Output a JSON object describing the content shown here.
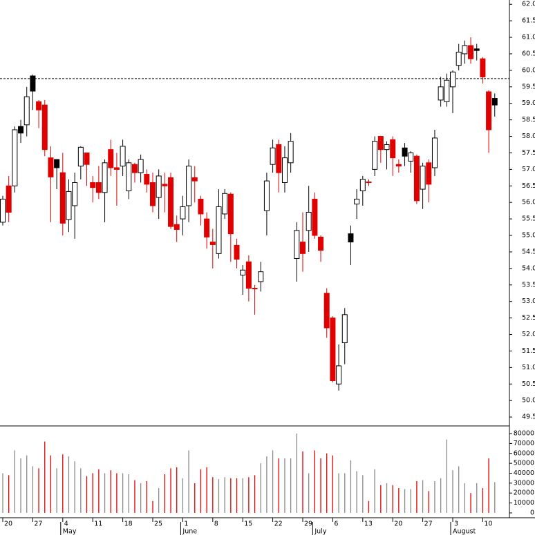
{
  "chart_data": [
    {
      "type": "candlestick",
      "open": [
        55.4,
        56.5,
        56.5,
        58.3,
        58.35,
        59.83,
        59.05,
        58.95,
        57.35,
        57.3,
        56.9,
        55.48,
        55.9,
        57.1,
        57.5,
        56.6,
        56.6,
        56.3,
        57.6,
        57.05,
        57.1,
        56.35,
        57.15,
        56.9,
        56.85,
        56.6,
        56.15,
        56.55,
        56.75,
        55.33,
        55.5,
        55.9,
        56.75,
        56.1,
        55.5,
        54.8,
        54.45,
        55.65,
        56.25,
        54.7,
        53.8,
        54.2,
        53.4,
        53.6,
        55.75,
        57.15,
        57.75,
        56.6,
        57.2,
        54.3,
        54.8,
        55.15,
        56.1,
        54.95,
        53.25,
        52.5,
        50.5,
        51.75,
        55.05,
        55.95,
        56.35,
        56.62,
        57.0,
        58.0,
        57.6,
        57.9,
        57.15,
        57.65,
        57.25,
        57.4,
        56.4,
        57.2,
        57.05,
        59.1,
        59.05,
        59.5,
        60.15,
        60.5,
        60.75,
        60.65,
        60.35,
        59.35,
        59.15
      ],
      "high": [
        56.2,
        56.8,
        58.3,
        58.5,
        59.5,
        59.87,
        59.1,
        59.1,
        57.7,
        57.3,
        57.5,
        56.7,
        56.9,
        57.7,
        57.5,
        56.8,
        57.1,
        57.3,
        57.9,
        57.5,
        57.9,
        57.3,
        57.2,
        57.45,
        57.0,
        56.9,
        57.0,
        56.9,
        56.9,
        55.6,
        56.2,
        57.3,
        57.1,
        56.2,
        55.7,
        55.2,
        56.4,
        56.4,
        56.3,
        54.9,
        54.1,
        54.4,
        53.5,
        54.2,
        56.9,
        57.9,
        57.9,
        57.7,
        58.1,
        55.4,
        55.7,
        56.5,
        56.3,
        55.0,
        53.4,
        52.55,
        51.7,
        52.8,
        55.3,
        56.4,
        56.8,
        56.7,
        58.0,
        58.0,
        57.85,
        58.0,
        57.3,
        57.8,
        57.55,
        57.45,
        57.2,
        57.3,
        58.2,
        59.8,
        59.9,
        60.0,
        60.8,
        60.9,
        61.0,
        60.8,
        60.4,
        59.4,
        59.3
      ],
      "low": [
        55.3,
        55.4,
        56.3,
        57.8,
        58.0,
        58.8,
        58.25,
        57.4,
        55.4,
        56.4,
        55.0,
        55.1,
        54.9,
        56.7,
        56.5,
        56.0,
        56.1,
        55.4,
        56.8,
        55.9,
        56.8,
        56.1,
        56.6,
        56.6,
        56.3,
        55.7,
        55.5,
        55.7,
        55.2,
        54.8,
        55.0,
        55.4,
        56.0,
        55.3,
        54.6,
        54.0,
        54.3,
        55.5,
        54.2,
        54.0,
        53.2,
        53.0,
        52.6,
        53.3,
        55.0,
        56.9,
        56.3,
        56.3,
        56.9,
        53.6,
        53.9,
        54.5,
        54.9,
        54.2,
        51.9,
        50.55,
        50.3,
        51.1,
        54.1,
        55.5,
        55.9,
        56.5,
        56.8,
        57.2,
        57.0,
        56.8,
        56.9,
        57.1,
        56.9,
        55.95,
        55.8,
        56.0,
        56.8,
        58.9,
        58.9,
        58.7,
        60.0,
        60.2,
        60.2,
        60.3,
        59.6,
        57.5,
        58.6
      ],
      "close": [
        56.1,
        55.7,
        58.2,
        58.1,
        59.2,
        59.37,
        58.8,
        57.6,
        56.77,
        57.05,
        55.37,
        56.33,
        56.6,
        57.67,
        57.15,
        56.45,
        56.3,
        57.2,
        57.05,
        57.0,
        57.7,
        57.2,
        56.9,
        57.3,
        56.55,
        55.9,
        56.8,
        56.5,
        55.27,
        55.18,
        55.87,
        57.1,
        56.65,
        55.65,
        54.95,
        54.72,
        55.87,
        56.27,
        55.05,
        54.28,
        53.95,
        53.4,
        53.38,
        53.9,
        56.65,
        57.65,
        56.9,
        57.35,
        57.85,
        55.15,
        54.45,
        55.7,
        55.0,
        54.55,
        52.2,
        50.6,
        51.05,
        52.6,
        54.8,
        56.1,
        56.7,
        56.6,
        57.85,
        57.6,
        57.75,
        57.35,
        57.1,
        57.4,
        57.5,
        56.05,
        57.1,
        56.55,
        57.95,
        59.5,
        59.7,
        59.95,
        60.55,
        60.75,
        60.35,
        60.6,
        59.8,
        58.2,
        58.95
      ],
      "colors": [
        "#ffffff",
        "#e00000",
        "#ffffff",
        "#000000",
        "#ffffff",
        "#000000",
        "#e00000",
        "#e00000",
        "#e00000",
        "#000000",
        "#e00000",
        "#ffffff",
        "#ffffff",
        "#ffffff",
        "#e00000",
        "#e00000",
        "#e00000",
        "#ffffff",
        "#e00000",
        "#e00000",
        "#ffffff",
        "#ffffff",
        "#e00000",
        "#ffffff",
        "#e00000",
        "#e00000",
        "#ffffff",
        "#e00000",
        "#e00000",
        "#e00000",
        "#ffffff",
        "#ffffff",
        "#e00000",
        "#e00000",
        "#e00000",
        "#e00000",
        "#ffffff",
        "#ffffff",
        "#e00000",
        "#e00000",
        "#ffffff",
        "#e00000",
        "#e00000",
        "#ffffff",
        "#ffffff",
        "#ffffff",
        "#e00000",
        "#ffffff",
        "#ffffff",
        "#ffffff",
        "#e00000",
        "#ffffff",
        "#e00000",
        "#e00000",
        "#e00000",
        "#e00000",
        "#ffffff",
        "#ffffff",
        "#000000",
        "#ffffff",
        "#ffffff",
        "#e00000",
        "#ffffff",
        "#e00000",
        "#ffffff",
        "#e00000",
        "#e00000",
        "#000000",
        "#ffffff",
        "#e00000",
        "#ffffff",
        "#e00000",
        "#ffffff",
        "#ffffff",
        "#ffffff",
        "#ffffff",
        "#ffffff",
        "#ffffff",
        "#e00000",
        "#000000",
        "#e00000",
        "#e00000",
        "#000000"
      ],
      "ylim": [
        49.23,
        62.13
      ],
      "yticks": [
        {
          "value": 49.5,
          "label": "49.5"
        },
        {
          "value": 50,
          "label": "50.0"
        },
        50.5,
        {
          "value": 51,
          "label": "51.0"
        },
        51.5,
        {
          "value": 52,
          "label": "52.0"
        },
        52.5,
        {
          "value": 53,
          "label": "53.0"
        },
        53.5,
        {
          "value": 54,
          "label": "54.0"
        },
        54.5,
        {
          "value": 55,
          "label": "55.0"
        },
        55.5,
        {
          "value": 56,
          "label": "56.0"
        },
        56.5,
        {
          "value": 57,
          "label": "57.0"
        },
        57.5,
        {
          "value": 58,
          "label": "58.0"
        },
        58.5,
        {
          "value": 59,
          "label": "59.0"
        },
        59.5,
        {
          "value": 60,
          "label": "60.0"
        },
        60.5,
        {
          "value": 61,
          "label": "61.0"
        },
        61.5,
        {
          "value": 62,
          "label": "62.0"
        }
      ],
      "reference_line": 59.75
    },
    {
      "type": "bar",
      "categories": [
        "20",
        null,
        null,
        null,
        null,
        "27",
        null,
        null,
        null,
        null,
        "4",
        null,
        null,
        null,
        null,
        "11",
        null,
        null,
        null,
        null,
        "18",
        null,
        null,
        null,
        null,
        "25",
        null,
        null,
        null,
        null,
        "1",
        null,
        null,
        null,
        null,
        "8",
        null,
        null,
        null,
        null,
        "15",
        null,
        null,
        null,
        null,
        "22",
        null,
        null,
        null,
        null,
        "29",
        null,
        null,
        null,
        null,
        "6",
        null,
        null,
        null,
        null,
        "13",
        null,
        null,
        null,
        null,
        "20",
        null,
        null,
        null,
        null,
        "27",
        null,
        null,
        null,
        null,
        "3",
        null,
        null,
        null,
        null,
        "10",
        null,
        null
      ],
      "months": [
        null,
        null,
        null,
        null,
        null,
        null,
        null,
        null,
        null,
        null,
        "May",
        null,
        null,
        null,
        null,
        null,
        null,
        null,
        null,
        null,
        null,
        null,
        null,
        null,
        null,
        null,
        null,
        null,
        null,
        null,
        "June",
        null,
        null,
        null,
        null,
        null,
        null,
        null,
        null,
        null,
        null,
        null,
        null,
        null,
        null,
        null,
        null,
        null,
        null,
        null,
        null,
        null,
        "July",
        null,
        null,
        null,
        null,
        null,
        null,
        null,
        null,
        null,
        null,
        null,
        null,
        null,
        null,
        null,
        null,
        null,
        null,
        null,
        null,
        null,
        null,
        "August",
        null,
        null,
        null,
        null,
        null,
        null,
        null
      ],
      "values": [
        40000,
        38000,
        63000,
        55000,
        58000,
        47000,
        45000,
        72000,
        58000,
        45000,
        59000,
        57000,
        52000,
        45000,
        37000,
        40000,
        44000,
        40000,
        43000,
        40000,
        40000,
        39000,
        33000,
        30000,
        32000,
        12000,
        25000,
        39000,
        45000,
        46000,
        35000,
        63000,
        30000,
        44000,
        46000,
        36000,
        34000,
        36000,
        35000,
        35000,
        35000,
        36000,
        38000,
        50000,
        57000,
        63000,
        55000,
        55000,
        55000,
        80000,
        62000,
        40000,
        63000,
        55000,
        60000,
        58000,
        40000,
        40000,
        53000,
        42000,
        38000,
        12000,
        44000,
        28000,
        30000,
        28000,
        25000,
        24000,
        24000,
        32000,
        33000,
        22000,
        32000,
        35000,
        74000,
        43000,
        47000,
        30000,
        20000,
        30000,
        25000,
        55000,
        31000
      ],
      "ylim": [
        -4900,
        87700
      ],
      "yticks": [
        0,
        10000,
        20000,
        30000,
        40000,
        50000,
        60000,
        70000,
        80000
      ]
    }
  ]
}
